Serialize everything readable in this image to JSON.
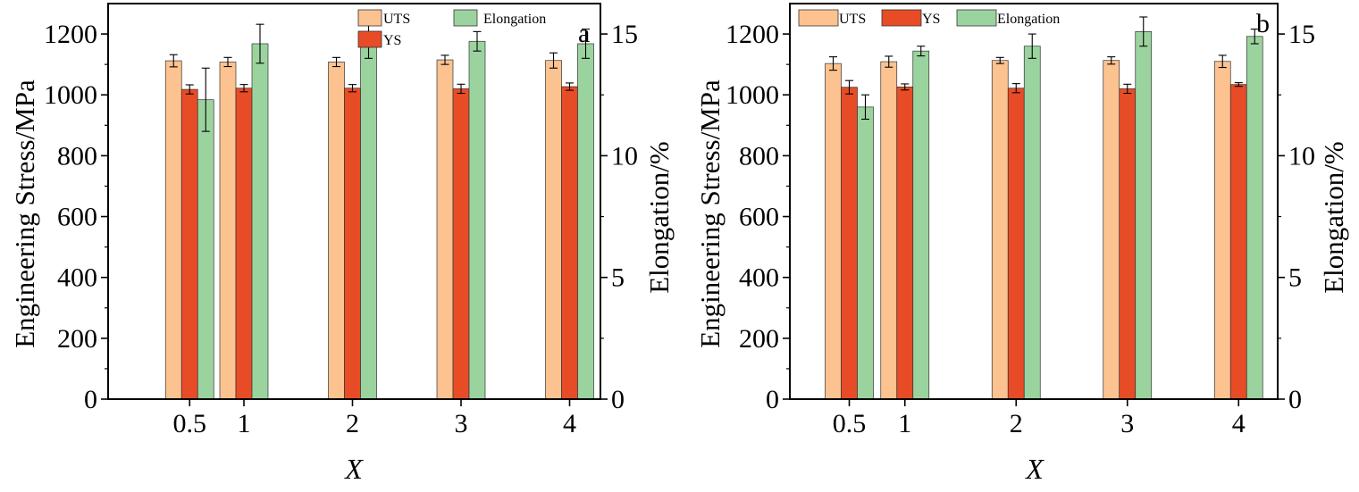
{
  "colors": {
    "UTS": "#fcc290",
    "YS": "#e84c26",
    "Elongation": "#9bd39f",
    "axis": "#000000",
    "error_bar": "#000000"
  },
  "chart_data": [
    {
      "type": "bar",
      "panel_label": "a",
      "x_values": [
        0.5,
        1,
        2,
        3,
        4
      ],
      "categories": [
        "0.5",
        "1",
        "2",
        "3",
        "4"
      ],
      "xlabel": "X",
      "ylabel_left": "Engineering Stress/MPa",
      "ylabel_right": "Elongation/%",
      "ylim_left": [
        0,
        1300
      ],
      "ylim_right": [
        0,
        16.25
      ],
      "yticks_left": [
        0,
        200,
        400,
        600,
        800,
        1000,
        1200
      ],
      "yticks_right": [
        0,
        5,
        10,
        15
      ],
      "grid": false,
      "legend": [
        {
          "name": "UTS",
          "color_key": "UTS"
        },
        {
          "name": "YS",
          "color_key": "YS"
        },
        {
          "name": "Elongation",
          "color_key": "Elongation"
        }
      ],
      "legend_position": "top-right",
      "series": [
        {
          "name": "UTS",
          "axis": "left",
          "color_key": "UTS",
          "values": [
            1112,
            1108,
            1108,
            1115,
            1113
          ],
          "errors": [
            20,
            15,
            15,
            15,
            25
          ]
        },
        {
          "name": "YS",
          "axis": "left",
          "color_key": "YS",
          "values": [
            1018,
            1022,
            1022,
            1020,
            1027
          ],
          "errors": [
            15,
            12,
            12,
            15,
            12
          ]
        },
        {
          "name": "Elongation",
          "axis": "right",
          "color_key": "Elongation",
          "values": [
            12.3,
            14.6,
            14.9,
            14.7,
            14.6
          ],
          "errors": [
            1.3,
            0.8,
            0.9,
            0.4,
            0.6
          ]
        }
      ]
    },
    {
      "type": "bar",
      "panel_label": "b",
      "x_values": [
        0.5,
        1,
        2,
        3,
        4
      ],
      "categories": [
        "0.5",
        "1",
        "2",
        "3",
        "4"
      ],
      "xlabel": "X",
      "ylabel_left": "Engineering Stress/MPa",
      "ylabel_right": "Elongation/%",
      "ylim_left": [
        0,
        1300
      ],
      "ylim_right": [
        0,
        16.25
      ],
      "yticks_left": [
        0,
        200,
        400,
        600,
        800,
        1000,
        1200
      ],
      "yticks_right": [
        0,
        5,
        10,
        15
      ],
      "grid": false,
      "legend": [
        {
          "name": "UTS",
          "color_key": "UTS"
        },
        {
          "name": "YS",
          "color_key": "YS"
        },
        {
          "name": "Elongation",
          "color_key": "Elongation"
        }
      ],
      "legend_position": "top",
      "series": [
        {
          "name": "UTS",
          "axis": "left",
          "color_key": "UTS",
          "values": [
            1103,
            1109,
            1113,
            1113,
            1110
          ],
          "errors": [
            22,
            18,
            10,
            12,
            20
          ]
        },
        {
          "name": "YS",
          "axis": "left",
          "color_key": "YS",
          "values": [
            1025,
            1026,
            1022,
            1020,
            1034
          ],
          "errors": [
            22,
            10,
            15,
            15,
            6
          ]
        },
        {
          "name": "Elongation",
          "axis": "right",
          "color_key": "Elongation",
          "values": [
            12.0,
            14.3,
            14.5,
            15.1,
            14.9
          ],
          "errors": [
            0.5,
            0.2,
            0.5,
            0.6,
            0.3
          ]
        }
      ]
    }
  ]
}
